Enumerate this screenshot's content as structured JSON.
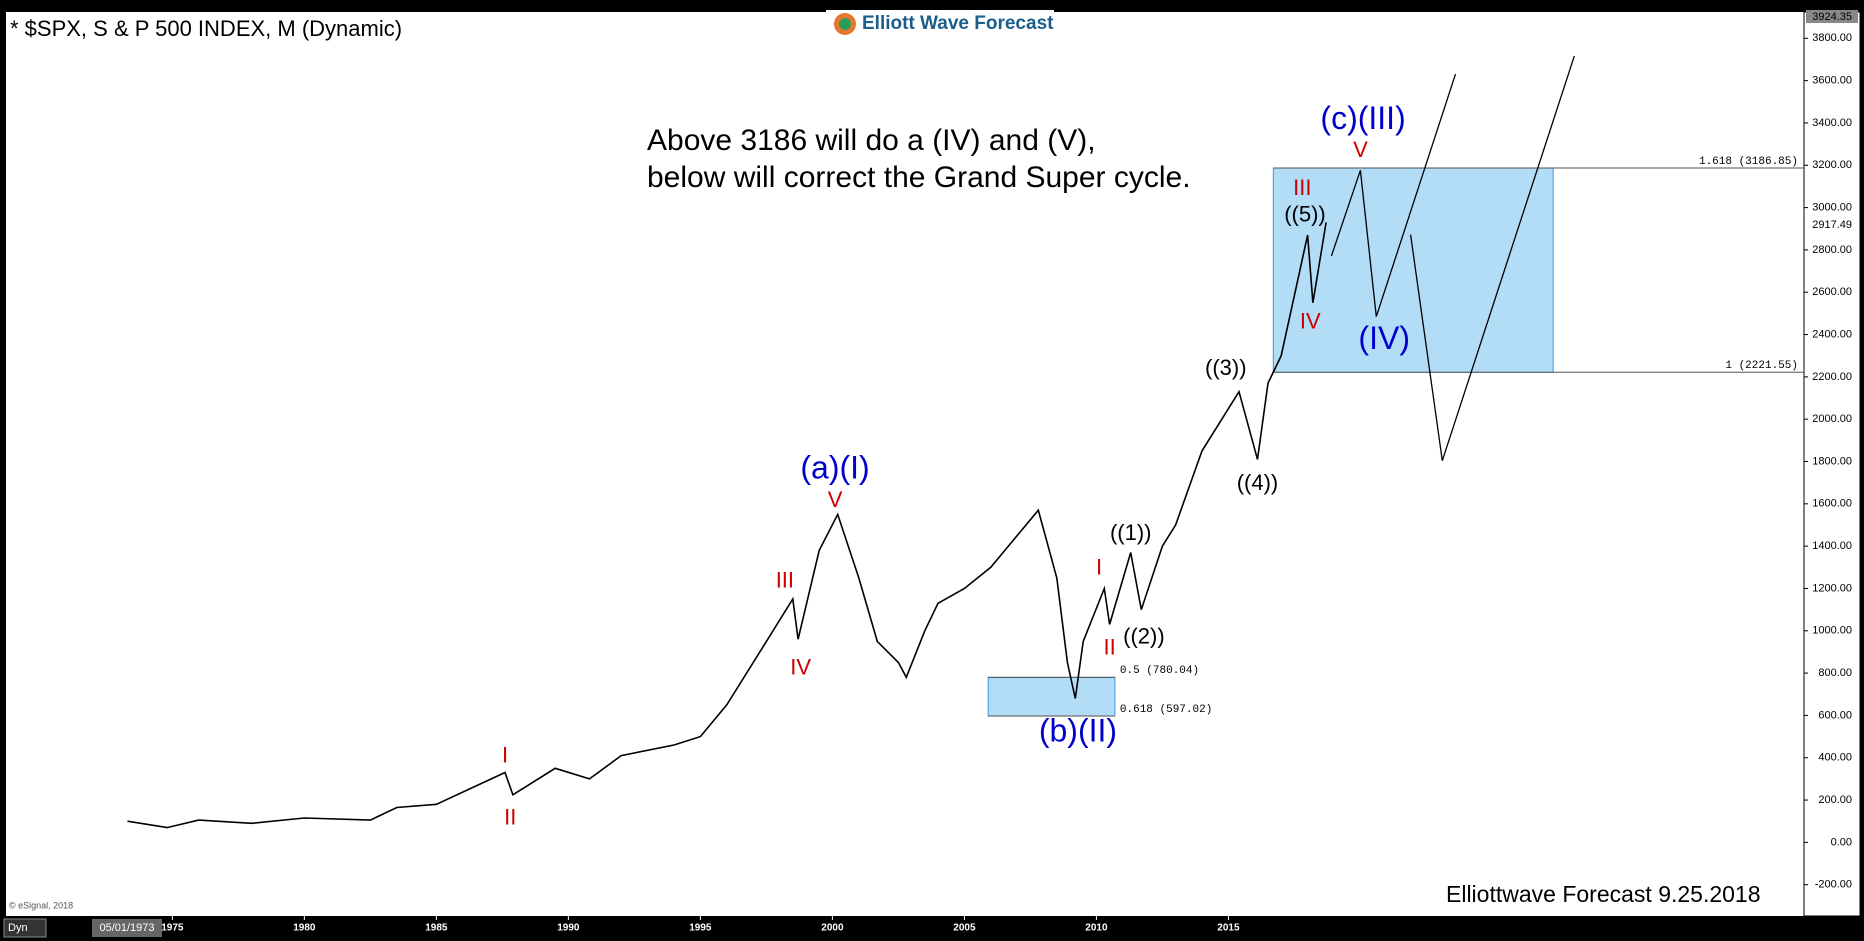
{
  "chart_data": {
    "type": "line",
    "title": "* $SPX, S & P 500 INDEX, M (Dynamic)",
    "watermark": "Elliott Wave Forecast",
    "note_lines": [
      "Above 3186 will do a (IV) and (V),",
      "below will correct the Grand Super cycle."
    ],
    "footer": "Elliottwave Forecast 9.25.2018",
    "copyright": "© eSignal, 2018",
    "cursor_date": "05/01/1973",
    "mode_button": "Dyn",
    "xlim": [
      1968.7,
      2036.8
    ],
    "xticks": [
      1975,
      1980,
      1985,
      1990,
      1995,
      2000,
      2005,
      2010,
      2015
    ],
    "ylim": [
      -348,
      3924.35
    ],
    "yticks": [
      {
        "value": -200,
        "label": "-200.00"
      },
      {
        "value": 0,
        "label": "0.00"
      },
      {
        "value": 200,
        "label": "200.00"
      },
      {
        "value": 400,
        "label": "400.00"
      },
      {
        "value": 600,
        "label": "600.00"
      },
      {
        "value": 800,
        "label": "800.00"
      },
      {
        "value": 1000,
        "label": "1000.00"
      },
      {
        "value": 1200,
        "label": "1200.00"
      },
      {
        "value": 1400,
        "label": "1400.00"
      },
      {
        "value": 1600,
        "label": "1600.00"
      },
      {
        "value": 1800,
        "label": "1800.00"
      },
      {
        "value": 2000,
        "label": "2000.00"
      },
      {
        "value": 2200,
        "label": "2200.00"
      },
      {
        "value": 2400,
        "label": "2400.00"
      },
      {
        "value": 2600,
        "label": "2600.00"
      },
      {
        "value": 2800,
        "label": "2800.00"
      },
      {
        "value": 3000,
        "label": "3000.00"
      },
      {
        "value": 3200,
        "label": "3200.00"
      },
      {
        "value": 3400,
        "label": "3400.00"
      },
      {
        "value": 3600,
        "label": "3600.00"
      },
      {
        "value": 3800,
        "label": "3800.00"
      }
    ],
    "last_price": 2917.49,
    "series": [
      {
        "name": "$SPX",
        "color": "#000000",
        "x": [
          1973.3,
          1974.8,
          1976,
          1978,
          1980,
          1982.5,
          1983.5,
          1985,
          1987.6,
          1987.9,
          1989.5,
          1990.8,
          1992,
          1994,
          1995,
          1996,
          1997.5,
          1998.5,
          1998.7,
          1999.5,
          2000.2,
          2001,
          2001.7,
          2002.5,
          2002.8,
          2003.5,
          2004,
          2005,
          2006,
          2007.8,
          2008.5,
          2008.9,
          2009.2,
          2009.5,
          2010.3,
          2010.5,
          2011.3,
          2011.7,
          2012.5,
          2013,
          2014,
          2015.4,
          2016.1,
          2016.5,
          2017,
          2018.0,
          2018.2,
          2018.7
        ],
        "values": [
          100,
          70,
          105,
          90,
          115,
          105,
          165,
          180,
          330,
          225,
          350,
          300,
          410,
          460,
          500,
          650,
          950,
          1150,
          960,
          1380,
          1550,
          1250,
          950,
          850,
          780,
          1000,
          1130,
          1200,
          1300,
          1570,
          1250,
          850,
          680,
          950,
          1200,
          1030,
          1370,
          1100,
          1400,
          1500,
          1850,
          2130,
          1810,
          2170,
          2300,
          2870,
          2550,
          2930
        ]
      }
    ],
    "projections": [
      {
        "x": [
          2018.9,
          2020.0,
          2020.6,
          2023.6
        ],
        "values": [
          2771,
          3176,
          2485,
          3631
        ]
      },
      {
        "x": [
          2021.9,
          2023.1,
          2028.1
        ],
        "values": [
          2872,
          1804,
          3716
        ]
      }
    ],
    "fib_zones": [
      {
        "color": "#b3dcf7",
        "extend": true,
        "x": [
          2016.7,
          2027.3
        ],
        "levels": [
          {
            "value": 3186.85,
            "label": "1.618 (3186.85)"
          },
          {
            "value": 2221.55,
            "label": "1 (2221.55)"
          }
        ]
      },
      {
        "color": "#b3dcf7",
        "extend": false,
        "x": [
          2005.9,
          2010.7
        ],
        "levels": [
          {
            "value": 780.04,
            "label": "0.5 (780.04)"
          },
          {
            "value": 597.02,
            "label": "0.618 (597.02)"
          }
        ]
      }
    ],
    "annotations": [
      {
        "text": "(a)(I)",
        "x": 2000.1,
        "y": 1759,
        "color": "#0000cc",
        "size": 32
      },
      {
        "text": "V",
        "x": 2000.1,
        "y": 1613,
        "color": "#cc0000",
        "size": 22
      },
      {
        "text": "III",
        "x": 1998.2,
        "y": 1231,
        "color": "#cc0000",
        "size": 22
      },
      {
        "text": "IV",
        "x": 1998.8,
        "y": 821,
        "color": "#cc0000",
        "size": 22
      },
      {
        "text": "I",
        "x": 1987.6,
        "y": 405,
        "color": "#cc0000",
        "size": 22
      },
      {
        "text": "II",
        "x": 1987.8,
        "y": 112,
        "color": "#cc0000",
        "size": 22
      },
      {
        "text": "(b)(II)",
        "x": 2009.3,
        "y": 517,
        "color": "#0000cc",
        "size": 32
      },
      {
        "text": "I",
        "x": 2010.1,
        "y": 1293,
        "color": "#cc0000",
        "size": 22
      },
      {
        "text": "II",
        "x": 2010.5,
        "y": 916,
        "color": "#cc0000",
        "size": 22
      },
      {
        "text": "((1))",
        "x": 2011.3,
        "y": 1456,
        "color": "#000000",
        "size": 22
      },
      {
        "text": "((2))",
        "x": 2011.8,
        "y": 967,
        "color": "#000000",
        "size": 22
      },
      {
        "text": "((3))",
        "x": 2014.9,
        "y": 2237,
        "color": "#000000",
        "size": 22
      },
      {
        "text": "((4))",
        "x": 2016.1,
        "y": 1692,
        "color": "#000000",
        "size": 22
      },
      {
        "text": "((5))",
        "x": 2017.9,
        "y": 2962,
        "color": "#000000",
        "size": 22
      },
      {
        "text": "III",
        "x": 2017.8,
        "y": 3086,
        "color": "#cc0000",
        "size": 22
      },
      {
        "text": "IV",
        "x": 2018.1,
        "y": 2456,
        "color": "#cc0000",
        "size": 22
      },
      {
        "text": "(c)(III)",
        "x": 2020.1,
        "y": 3412,
        "color": "#0000cc",
        "size": 32
      },
      {
        "text": "V",
        "x": 2020.0,
        "y": 3266,
        "color": "#cc0000",
        "size": 22
      },
      {
        "text": "(IV)",
        "x": 2020.9,
        "y": 2372,
        "color": "#0000cc",
        "size": 32
      }
    ]
  }
}
